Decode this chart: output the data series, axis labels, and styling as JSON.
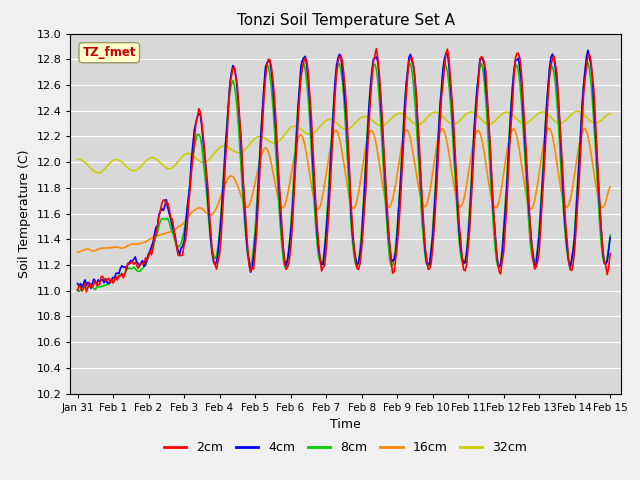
{
  "title": "Tonzi Soil Temperature Set A",
  "xlabel": "Time",
  "ylabel": "Soil Temperature (C)",
  "ylim": [
    10.2,
    13.0
  ],
  "xlim_start": -0.2,
  "xlim_end": 15.3,
  "x_tick_labels": [
    "Jan 31",
    "Feb 1",
    "Feb 2",
    "Feb 3",
    "Feb 4",
    "Feb 5",
    "Feb 6",
    "Feb 7",
    "Feb 8",
    "Feb 9",
    "Feb 10",
    "Feb 11",
    "Feb 12",
    "Feb 13",
    "Feb 14",
    "Feb 15"
  ],
  "x_tick_positions": [
    0,
    1,
    2,
    3,
    4,
    5,
    6,
    7,
    8,
    9,
    10,
    11,
    12,
    13,
    14,
    15
  ],
  "colors": {
    "2cm": "#ff0000",
    "4cm": "#0000ff",
    "8cm": "#00cc00",
    "16cm": "#ff8800",
    "32cm": "#cccc00"
  },
  "line_width": 1.2,
  "fig_bg_color": "#f0f0f0",
  "plot_bg_color": "#d8d8d8",
  "annotation_text": "TZ_fmet",
  "annotation_color": "#cc0000",
  "annotation_bg": "#ffffcc",
  "annotation_edge": "#999966",
  "yticks": [
    10.2,
    10.4,
    10.6,
    10.8,
    11.0,
    11.2,
    11.4,
    11.6,
    11.8,
    12.0,
    12.2,
    12.4,
    12.6,
    12.8,
    13.0
  ],
  "legend_entries": [
    "2cm",
    "4cm",
    "8cm",
    "16cm",
    "32cm"
  ]
}
